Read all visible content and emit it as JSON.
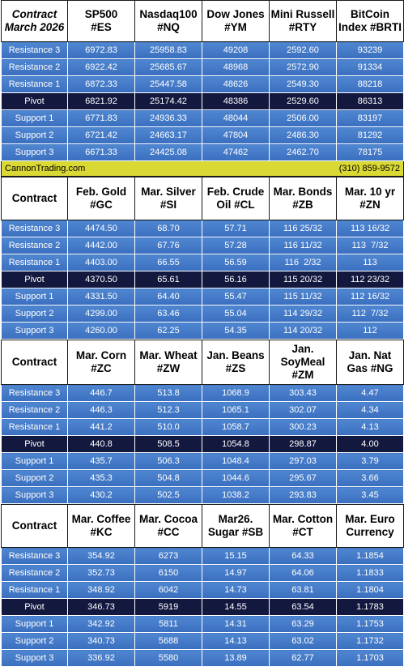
{
  "sections": [
    {
      "header_italic": true,
      "headers": [
        [
          "Contract",
          "March 2026"
        ],
        [
          "SP500",
          "#ES"
        ],
        [
          "Nasdaq100",
          "#NQ"
        ],
        [
          "Dow Jones",
          "#YM"
        ],
        [
          "Mini Russell",
          "#RTY"
        ],
        [
          "BitCoin",
          "Index #BRTI"
        ]
      ],
      "rows": [
        {
          "label": "Resistance 3",
          "values": [
            "6972.83",
            "25958.83",
            "49208",
            "2592.60",
            "93239"
          ]
        },
        {
          "label": "Resistance 2",
          "values": [
            "6922.42",
            "25685.67",
            "48968",
            "2572.90",
            "91334"
          ]
        },
        {
          "label": "Resistance 1",
          "values": [
            "6872.33",
            "25447.58",
            "48626",
            "2549.30",
            "88218"
          ]
        },
        {
          "label": "Pivot",
          "values": [
            "6821.92",
            "25174.42",
            "48386",
            "2529.60",
            "86313"
          ]
        },
        {
          "label": "Support 1",
          "values": [
            "6771.83",
            "24936.33",
            "48044",
            "2506.00",
            "83197"
          ]
        },
        {
          "label": "Support 2",
          "values": [
            "6721.42",
            "24663.17",
            "47804",
            "2486.30",
            "81292"
          ]
        },
        {
          "label": "Support 3",
          "values": [
            "6671.33",
            "24425.08",
            "47462",
            "2462.70",
            "78175"
          ]
        }
      ]
    },
    {
      "header_italic": false,
      "headers": [
        [
          "Contract"
        ],
        [
          "Feb. Gold",
          "#GC"
        ],
        [
          "Mar. Silver",
          "#SI"
        ],
        [
          "Feb. Crude",
          "Oil #CL"
        ],
        [
          "Mar. Bonds",
          "#ZB"
        ],
        [
          "Mar. 10 yr",
          "#ZN"
        ]
      ],
      "rows": [
        {
          "label": "Resistance 3",
          "values": [
            "4474.50",
            "68.70",
            "57.71",
            "116 25/32",
            "113 16/32"
          ]
        },
        {
          "label": "Resistance 2",
          "values": [
            "4442.00",
            "67.76",
            "57.28",
            "116 11/32",
            "113  7/32"
          ]
        },
        {
          "label": "Resistance 1",
          "values": [
            "4403.00",
            "66.55",
            "56.59",
            "116  2/32",
            "113"
          ]
        },
        {
          "label": "Pivot",
          "values": [
            "4370.50",
            "65.61",
            "56.16",
            "115 20/32",
            "112 23/32"
          ]
        },
        {
          "label": "Support 1",
          "values": [
            "4331.50",
            "64.40",
            "55.47",
            "115 11/32",
            "112 16/32"
          ]
        },
        {
          "label": "Support 2",
          "values": [
            "4299.00",
            "63.46",
            "55.04",
            "114 29/32",
            "112  7/32"
          ]
        },
        {
          "label": "Support 3",
          "values": [
            "4260.00",
            "62.25",
            "54.35",
            "114 20/32",
            "112"
          ]
        }
      ]
    },
    {
      "header_italic": false,
      "headers": [
        [
          "Contract"
        ],
        [
          "Mar. Corn",
          "#ZC"
        ],
        [
          "Mar.  Wheat",
          "#ZW"
        ],
        [
          "Jan. Beans",
          "#ZS"
        ],
        [
          "Jan.",
          "SoyMeal",
          "#ZM"
        ],
        [
          "Jan. Nat",
          "Gas #NG"
        ]
      ],
      "rows": [
        {
          "label": "Resistance 3",
          "values": [
            "446.7",
            "513.8",
            "1068.9",
            "303.43",
            "4.47"
          ]
        },
        {
          "label": "Resistance 2",
          "values": [
            "446.3",
            "512.3",
            "1065.1",
            "302.07",
            "4.34"
          ]
        },
        {
          "label": "Resistance 1",
          "values": [
            "441.2",
            "510.0",
            "1058.7",
            "300.23",
            "4.13"
          ]
        },
        {
          "label": "Pivot",
          "values": [
            "440.8",
            "508.5",
            "1054.8",
            "298.87",
            "4.00"
          ]
        },
        {
          "label": "Support 1",
          "values": [
            "435.7",
            "506.3",
            "1048.4",
            "297.03",
            "3.79"
          ]
        },
        {
          "label": "Support 2",
          "values": [
            "435.3",
            "504.8",
            "1044.6",
            "295.67",
            "3.66"
          ]
        },
        {
          "label": "Support 3",
          "values": [
            "430.2",
            "502.5",
            "1038.2",
            "293.83",
            "3.45"
          ]
        }
      ]
    },
    {
      "header_italic": false,
      "headers": [
        [
          "Contract"
        ],
        [
          "Mar. Coffee",
          "#KC"
        ],
        [
          "Mar. Cocoa",
          "#CC"
        ],
        [
          "Mar26.",
          "Sugar #SB"
        ],
        [
          "Mar. Cotton",
          "#CT"
        ],
        [
          "Mar. Euro",
          "Currency"
        ]
      ],
      "rows": [
        {
          "label": "Resistance 3",
          "values": [
            "354.92",
            "6273",
            "15.15",
            "64.33",
            "1.1854"
          ]
        },
        {
          "label": "Resistance 2",
          "values": [
            "352.73",
            "6150",
            "14.97",
            "64.06",
            "1.1833"
          ]
        },
        {
          "label": "Resistance 1",
          "values": [
            "348.92",
            "6042",
            "14.73",
            "63.81",
            "1.1804"
          ]
        },
        {
          "label": "Pivot",
          "values": [
            "346.73",
            "5919",
            "14.55",
            "63.54",
            "1.1783"
          ]
        },
        {
          "label": "Support 1",
          "values": [
            "342.92",
            "5811",
            "14.31",
            "63.29",
            "1.1753"
          ]
        },
        {
          "label": "Support 2",
          "values": [
            "340.73",
            "5688",
            "14.13",
            "63.02",
            "1.1732"
          ]
        },
        {
          "label": "Support 3",
          "values": [
            "336.92",
            "5580",
            "13.89",
            "62.77",
            "1.1703"
          ]
        }
      ]
    }
  ],
  "banner": {
    "site": "CannonTrading.com",
    "phone": "(310) 859-9572"
  },
  "colors": {
    "row": "#3f76c6",
    "pivot": "#13183f",
    "banner": "#d9d834"
  }
}
